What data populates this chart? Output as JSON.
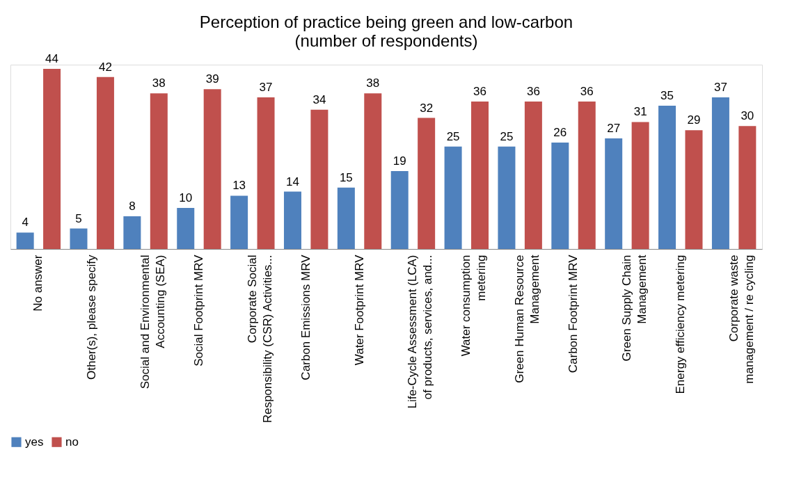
{
  "chart_data": {
    "type": "bar",
    "title": "Perception of practice being green and low-carbon",
    "subtitle": "(number of respondents)",
    "categories": [
      "No answer",
      "Other(s), please specify",
      "Social and Environmental\nAccounting (SEA)",
      "Social Footprint MRV",
      "Corporate Social\nResponsibility (CSR) Activities...",
      "Carbon Emissions MRV",
      "Water Footprint MRV",
      "Life-Cycle Assessment (LCA)\nof products, services, and...",
      "Water consumption\nmetering",
      "Green Human Resource\nManagement",
      "Carbon Footprint MRV",
      "Green Supply Chain\nManagement",
      "Energy efficiency metering",
      "Corporate waste\nmanagement / re cycling"
    ],
    "series": [
      {
        "name": "yes",
        "color": "#4f81bd",
        "values": [
          4,
          5,
          8,
          10,
          13,
          14,
          15,
          19,
          25,
          25,
          26,
          27,
          35,
          37
        ]
      },
      {
        "name": "no",
        "color": "#c0504d",
        "values": [
          44,
          42,
          38,
          39,
          37,
          34,
          38,
          32,
          36,
          36,
          36,
          31,
          29,
          30
        ]
      }
    ],
    "data_labels": true,
    "legend": "bottom",
    "grid": false
  }
}
